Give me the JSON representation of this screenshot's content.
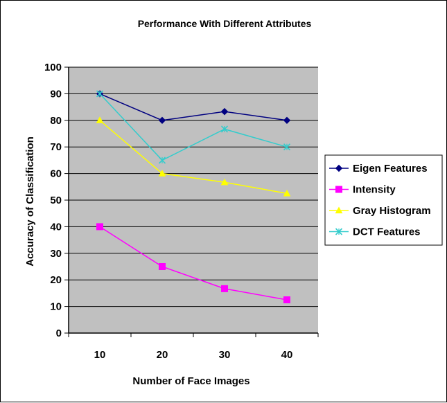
{
  "chart_data": {
    "type": "line",
    "title": "Performance With Different Attributes",
    "xlabel": "Number of Face Images",
    "ylabel": "Accuracy of Classification",
    "categories": [
      "10",
      "20",
      "30",
      "40"
    ],
    "ylim": [
      0,
      100
    ],
    "yticks": [
      0,
      10,
      20,
      30,
      40,
      50,
      60,
      70,
      80,
      90,
      100
    ],
    "grid": true,
    "legend_position": "right",
    "plot_background": "#c0c0c0",
    "series": [
      {
        "name": "Eigen Features",
        "values": [
          90,
          80,
          83.3,
          80
        ],
        "color": "#000080",
        "marker": "diamond"
      },
      {
        "name": "Intensity",
        "values": [
          40,
          25,
          16.7,
          12.5
        ],
        "color": "#ff00ff",
        "marker": "square"
      },
      {
        "name": "Gray Histogram",
        "values": [
          80,
          60,
          56.7,
          52.5
        ],
        "color": "#ffff00",
        "marker": "triangle"
      },
      {
        "name": "DCT Features",
        "values": [
          90,
          65,
          76.7,
          70
        ],
        "color": "#33cccc",
        "marker": "x"
      }
    ]
  }
}
